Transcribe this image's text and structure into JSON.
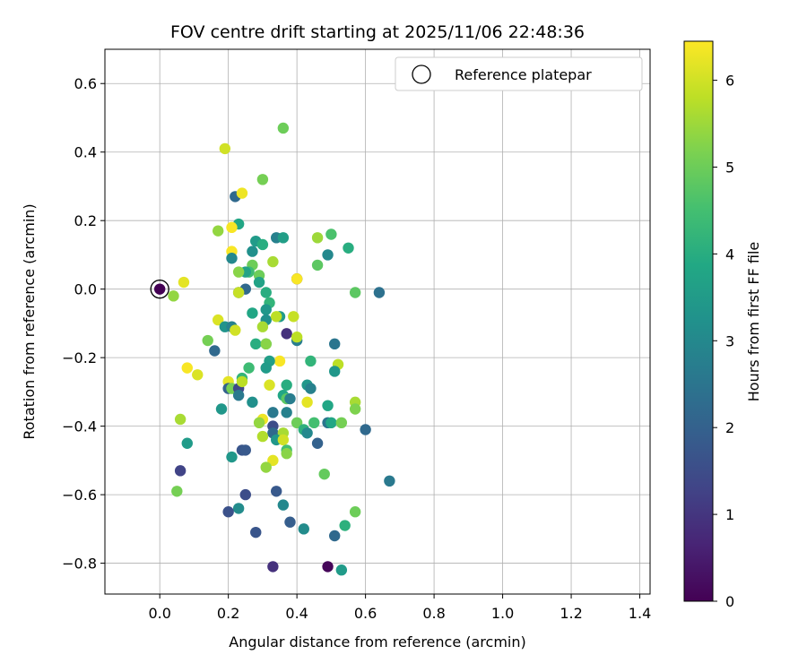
{
  "chart_data": {
    "type": "scatter",
    "title": "FOV centre drift starting at 2025/11/06 22:48:36",
    "xlabel": "Angular distance from reference (arcmin)",
    "ylabel": "Rotation from reference (arcmin)",
    "xlim": [
      -0.16,
      1.43
    ],
    "ylim": [
      -0.89,
      0.7
    ],
    "xticks": [
      0.0,
      0.2,
      0.4,
      0.6,
      0.8,
      1.0,
      1.2,
      1.4
    ],
    "xtick_labels": [
      "0.0",
      "0.2",
      "0.4",
      "0.6",
      "0.8",
      "1.0",
      "1.2",
      "1.4"
    ],
    "yticks": [
      -0.8,
      -0.6,
      -0.4,
      -0.2,
      0.0,
      0.2,
      0.4,
      0.6
    ],
    "ytick_labels": [
      "−0.8",
      "−0.6",
      "−0.4",
      "−0.2",
      "0.0",
      "0.2",
      "0.4",
      "0.6"
    ],
    "grid": true,
    "legend": {
      "placement": "top-right",
      "entries": [
        "Reference platepar"
      ]
    },
    "reference_point": {
      "x": 0.0,
      "y": 0.0,
      "label": "Reference platepar",
      "color_hours": 0
    },
    "colorbar": {
      "label": "Hours from first FF file",
      "colormap": "viridis",
      "range": [
        0,
        6.45
      ],
      "ticks": [
        0,
        1,
        2,
        3,
        4,
        5,
        6
      ],
      "tick_labels": [
        "0",
        "1",
        "2",
        "3",
        "4",
        "5",
        "6"
      ]
    },
    "points": [
      {
        "x": 0.19,
        "y": 0.41,
        "h": 6.0
      },
      {
        "x": 0.36,
        "y": 0.47,
        "h": 5.0
      },
      {
        "x": 0.3,
        "y": 0.32,
        "h": 5.1
      },
      {
        "x": 0.22,
        "y": 0.27,
        "h": 2.2
      },
      {
        "x": 0.24,
        "y": 0.28,
        "h": 6.3
      },
      {
        "x": 0.23,
        "y": 0.19,
        "h": 3.8
      },
      {
        "x": 0.17,
        "y": 0.17,
        "h": 5.4
      },
      {
        "x": 0.21,
        "y": 0.18,
        "h": 6.4
      },
      {
        "x": 0.21,
        "y": 0.11,
        "h": 6.4
      },
      {
        "x": 0.21,
        "y": 0.09,
        "h": 3.0
      },
      {
        "x": 0.27,
        "y": 0.11,
        "h": 3.2
      },
      {
        "x": 0.28,
        "y": 0.14,
        "h": 3.5
      },
      {
        "x": 0.3,
        "y": 0.13,
        "h": 4.0
      },
      {
        "x": 0.34,
        "y": 0.15,
        "h": 2.8
      },
      {
        "x": 0.36,
        "y": 0.15,
        "h": 3.6
      },
      {
        "x": 0.46,
        "y": 0.15,
        "h": 5.5
      },
      {
        "x": 0.5,
        "y": 0.16,
        "h": 4.6
      },
      {
        "x": 0.55,
        "y": 0.12,
        "h": 4.0
      },
      {
        "x": 0.49,
        "y": 0.1,
        "h": 3.0
      },
      {
        "x": 0.46,
        "y": 0.07,
        "h": 4.8
      },
      {
        "x": 0.33,
        "y": 0.08,
        "h": 5.6
      },
      {
        "x": 0.27,
        "y": 0.07,
        "h": 5.0
      },
      {
        "x": 0.26,
        "y": 0.05,
        "h": 4.4
      },
      {
        "x": 0.25,
        "y": 0.05,
        "h": 3.7
      },
      {
        "x": 0.23,
        "y": 0.05,
        "h": 5.3
      },
      {
        "x": 0.29,
        "y": 0.04,
        "h": 5.0
      },
      {
        "x": 0.29,
        "y": 0.02,
        "h": 3.7
      },
      {
        "x": 0.31,
        "y": -0.01,
        "h": 4.0
      },
      {
        "x": 0.25,
        "y": 0.0,
        "h": 2.2
      },
      {
        "x": 0.23,
        "y": -0.01,
        "h": 2.3
      },
      {
        "x": 0.23,
        "y": -0.01,
        "h": 5.9
      },
      {
        "x": 0.4,
        "y": 0.03,
        "h": 1.0
      },
      {
        "x": 0.4,
        "y": 0.03,
        "h": 6.4
      },
      {
        "x": 0.57,
        "y": -0.01,
        "h": 4.8
      },
      {
        "x": 0.64,
        "y": -0.01,
        "h": 2.4
      },
      {
        "x": 0.07,
        "y": 0.02,
        "h": 6.2
      },
      {
        "x": 0.04,
        "y": -0.02,
        "h": 5.4
      },
      {
        "x": 0.27,
        "y": -0.07,
        "h": 3.8
      },
      {
        "x": 0.32,
        "y": -0.04,
        "h": 4.2
      },
      {
        "x": 0.31,
        "y": -0.06,
        "h": 3.4
      },
      {
        "x": 0.31,
        "y": -0.09,
        "h": 3.2
      },
      {
        "x": 0.35,
        "y": -0.08,
        "h": 3.5
      },
      {
        "x": 0.39,
        "y": -0.08,
        "h": 5.9
      },
      {
        "x": 0.34,
        "y": -0.08,
        "h": 5.8
      },
      {
        "x": 0.17,
        "y": -0.09,
        "h": 6.1
      },
      {
        "x": 0.19,
        "y": -0.11,
        "h": 3.3
      },
      {
        "x": 0.21,
        "y": -0.11,
        "h": 2.8
      },
      {
        "x": 0.22,
        "y": -0.12,
        "h": 6.0
      },
      {
        "x": 0.3,
        "y": -0.11,
        "h": 5.6
      },
      {
        "x": 0.37,
        "y": -0.13,
        "h": 0.9
      },
      {
        "x": 0.4,
        "y": -0.15,
        "h": 2.7
      },
      {
        "x": 0.4,
        "y": -0.14,
        "h": 5.8
      },
      {
        "x": 0.51,
        "y": -0.16,
        "h": 2.5
      },
      {
        "x": 0.14,
        "y": -0.15,
        "h": 5.1
      },
      {
        "x": 0.16,
        "y": -0.18,
        "h": 2.2
      },
      {
        "x": 0.28,
        "y": -0.16,
        "h": 4.0
      },
      {
        "x": 0.31,
        "y": -0.16,
        "h": 3.9
      },
      {
        "x": 0.31,
        "y": -0.16,
        "h": 5.3
      },
      {
        "x": 0.44,
        "y": -0.21,
        "h": 4.2
      },
      {
        "x": 0.52,
        "y": -0.22,
        "h": 5.8
      },
      {
        "x": 0.51,
        "y": -0.24,
        "h": 3.4
      },
      {
        "x": 0.35,
        "y": -0.21,
        "h": 6.4
      },
      {
        "x": 0.32,
        "y": -0.21,
        "h": 3.6
      },
      {
        "x": 0.31,
        "y": -0.23,
        "h": 3.5
      },
      {
        "x": 0.26,
        "y": -0.23,
        "h": 4.4
      },
      {
        "x": 0.08,
        "y": -0.23,
        "h": 6.4
      },
      {
        "x": 0.11,
        "y": -0.25,
        "h": 6.1
      },
      {
        "x": 0.2,
        "y": -0.27,
        "h": 6.2
      },
      {
        "x": 0.2,
        "y": -0.29,
        "h": 2.0
      },
      {
        "x": 0.21,
        "y": -0.29,
        "h": 5.1
      },
      {
        "x": 0.23,
        "y": -0.29,
        "h": 1.4
      },
      {
        "x": 0.24,
        "y": -0.26,
        "h": 4.2
      },
      {
        "x": 0.24,
        "y": -0.27,
        "h": 5.8
      },
      {
        "x": 0.23,
        "y": -0.31,
        "h": 2.6
      },
      {
        "x": 0.27,
        "y": -0.33,
        "h": 3.2
      },
      {
        "x": 0.32,
        "y": -0.28,
        "h": 6.1
      },
      {
        "x": 0.37,
        "y": -0.28,
        "h": 4.0
      },
      {
        "x": 0.43,
        "y": -0.28,
        "h": 3.4
      },
      {
        "x": 0.44,
        "y": -0.29,
        "h": 2.8
      },
      {
        "x": 0.36,
        "y": -0.31,
        "h": 3.8
      },
      {
        "x": 0.37,
        "y": -0.32,
        "h": 4.8
      },
      {
        "x": 0.38,
        "y": -0.32,
        "h": 2.7
      },
      {
        "x": 0.43,
        "y": -0.33,
        "h": 6.2
      },
      {
        "x": 0.49,
        "y": -0.34,
        "h": 3.8
      },
      {
        "x": 0.57,
        "y": -0.33,
        "h": 5.6
      },
      {
        "x": 0.57,
        "y": -0.35,
        "h": 5.2
      },
      {
        "x": 0.18,
        "y": -0.35,
        "h": 3.4
      },
      {
        "x": 0.37,
        "y": -0.36,
        "h": 2.8
      },
      {
        "x": 0.33,
        "y": -0.36,
        "h": 2.6
      },
      {
        "x": 0.3,
        "y": -0.38,
        "h": 6.3
      },
      {
        "x": 0.29,
        "y": -0.39,
        "h": 5.4
      },
      {
        "x": 0.06,
        "y": -0.38,
        "h": 5.6
      },
      {
        "x": 0.4,
        "y": -0.39,
        "h": 5.0
      },
      {
        "x": 0.45,
        "y": -0.39,
        "h": 4.5
      },
      {
        "x": 0.49,
        "y": -0.39,
        "h": 2.5
      },
      {
        "x": 0.5,
        "y": -0.39,
        "h": 3.8
      },
      {
        "x": 0.53,
        "y": -0.39,
        "h": 5.1
      },
      {
        "x": 0.33,
        "y": -0.4,
        "h": 1.5
      },
      {
        "x": 0.33,
        "y": -0.42,
        "h": 2.2
      },
      {
        "x": 0.36,
        "y": -0.42,
        "h": 5.6
      },
      {
        "x": 0.42,
        "y": -0.41,
        "h": 4.1
      },
      {
        "x": 0.43,
        "y": -0.42,
        "h": 3.0
      },
      {
        "x": 0.6,
        "y": -0.41,
        "h": 2.2
      },
      {
        "x": 0.3,
        "y": -0.43,
        "h": 5.7
      },
      {
        "x": 0.34,
        "y": -0.44,
        "h": 3.4
      },
      {
        "x": 0.36,
        "y": -0.44,
        "h": 6.0
      },
      {
        "x": 0.46,
        "y": -0.45,
        "h": 2.0
      },
      {
        "x": 0.08,
        "y": -0.45,
        "h": 3.5
      },
      {
        "x": 0.24,
        "y": -0.47,
        "h": 1.7
      },
      {
        "x": 0.25,
        "y": -0.47,
        "h": 1.8
      },
      {
        "x": 0.37,
        "y": -0.47,
        "h": 4.5
      },
      {
        "x": 0.37,
        "y": -0.48,
        "h": 5.3
      },
      {
        "x": 0.21,
        "y": -0.49,
        "h": 3.4
      },
      {
        "x": 0.33,
        "y": -0.5,
        "h": 6.2
      },
      {
        "x": 0.31,
        "y": -0.52,
        "h": 5.4
      },
      {
        "x": 0.06,
        "y": -0.53,
        "h": 1.3
      },
      {
        "x": 0.48,
        "y": -0.54,
        "h": 4.9
      },
      {
        "x": 0.67,
        "y": -0.56,
        "h": 2.6
      },
      {
        "x": 0.05,
        "y": -0.59,
        "h": 5.1
      },
      {
        "x": 0.34,
        "y": -0.59,
        "h": 1.8
      },
      {
        "x": 0.25,
        "y": -0.6,
        "h": 1.5
      },
      {
        "x": 0.36,
        "y": -0.63,
        "h": 3.0
      },
      {
        "x": 0.23,
        "y": -0.64,
        "h": 3.1
      },
      {
        "x": 0.2,
        "y": -0.65,
        "h": 1.6
      },
      {
        "x": 0.57,
        "y": -0.65,
        "h": 5.0
      },
      {
        "x": 0.38,
        "y": -0.68,
        "h": 1.9
      },
      {
        "x": 0.54,
        "y": -0.69,
        "h": 4.1
      },
      {
        "x": 0.42,
        "y": -0.7,
        "h": 3.1
      },
      {
        "x": 0.28,
        "y": -0.71,
        "h": 1.7
      },
      {
        "x": 0.51,
        "y": -0.72,
        "h": 2.2
      },
      {
        "x": 0.33,
        "y": -0.81,
        "h": 0.9
      },
      {
        "x": 0.49,
        "y": -0.81,
        "h": 0.1
      },
      {
        "x": 0.53,
        "y": -0.82,
        "h": 3.5
      }
    ]
  }
}
